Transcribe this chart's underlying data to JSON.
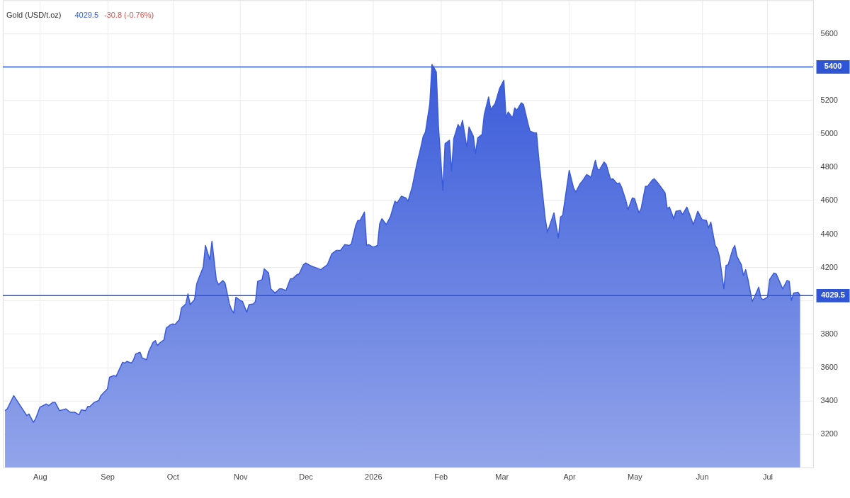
{
  "chart_data": {
    "type": "area",
    "title": "Gold (USD/t.oz)",
    "annotations": [
      "4029.5",
      "-30.8 (-0.76%)"
    ],
    "x": [
      "2025-07-16",
      "2025-07-17",
      "2025-07-20",
      "2025-07-22",
      "2025-07-23",
      "2025-07-26",
      "2025-07-27",
      "2025-07-29",
      "2025-07-30",
      "2025-08-01",
      "2025-08-04",
      "2025-08-05",
      "2025-08-07",
      "2025-08-08",
      "2025-08-10",
      "2025-08-13",
      "2025-08-15",
      "2025-08-17",
      "2025-08-19",
      "2025-08-20",
      "2025-08-22",
      "2025-08-23",
      "2025-08-24",
      "2025-08-26",
      "2025-08-28",
      "2025-08-29",
      "2025-09-01",
      "2025-09-02",
      "2025-09-04",
      "2025-09-05",
      "2025-09-08",
      "2025-09-09",
      "2025-09-10",
      "2025-09-12",
      "2025-09-13",
      "2025-09-14",
      "2025-09-16",
      "2025-09-17",
      "2025-09-19",
      "2025-09-20",
      "2025-09-22",
      "2025-09-23",
      "2025-09-24",
      "2025-09-25",
      "2025-09-27",
      "2025-09-28",
      "2025-09-30",
      "2025-10-01",
      "2025-10-02",
      "2025-10-04",
      "2025-10-05",
      "2025-10-07",
      "2025-10-08",
      "2025-10-09",
      "2025-10-11",
      "2025-10-12",
      "2025-10-13",
      "2025-10-15",
      "2025-10-16",
      "2025-10-18",
      "2025-10-19",
      "2025-10-21",
      "2025-10-22",
      "2025-10-24",
      "2025-10-25",
      "2025-10-27",
      "2025-10-28",
      "2025-10-29",
      "2025-10-30",
      "2025-11-01",
      "2025-11-02",
      "2025-11-04",
      "2025-11-05",
      "2025-11-07",
      "2025-11-08",
      "2025-11-09",
      "2025-11-11",
      "2025-11-12",
      "2025-11-14",
      "2025-11-15",
      "2025-11-17",
      "2025-11-19",
      "2025-11-20",
      "2025-11-22",
      "2025-11-24",
      "2025-11-25",
      "2025-11-27",
      "2025-11-28",
      "2025-11-30",
      "2025-12-01",
      "2025-12-03",
      "2025-12-05",
      "2025-12-08",
      "2025-12-11",
      "2025-12-13",
      "2025-12-15",
      "2025-12-17",
      "2025-12-19",
      "2025-12-21",
      "2025-12-22",
      "2025-12-24",
      "2025-12-25",
      "2025-12-26",
      "2025-12-28",
      "2025-12-29",
      "2025-12-30",
      "2026-01-01",
      "2026-01-03",
      "2026-01-04",
      "2026-01-05",
      "2026-01-07",
      "2026-01-09",
      "2026-01-11",
      "2026-01-12",
      "2026-01-14",
      "2026-01-16",
      "2026-01-17",
      "2026-01-19",
      "2026-01-21",
      "2026-01-23",
      "2026-01-24",
      "2026-01-25",
      "2026-01-27",
      "2026-01-28",
      "2026-01-30",
      "2026-01-31",
      "2026-02-02",
      "2026-02-03",
      "2026-02-05",
      "2026-02-06",
      "2026-02-07",
      "2026-02-09",
      "2026-02-10",
      "2026-02-11",
      "2026-02-13",
      "2026-02-14",
      "2026-02-16",
      "2026-02-17",
      "2026-02-18",
      "2026-02-20",
      "2026-02-21",
      "2026-02-23",
      "2026-02-24",
      "2026-02-26",
      "2026-02-28",
      "2026-03-02",
      "2026-03-03",
      "2026-03-04",
      "2026-03-06",
      "2026-03-07",
      "2026-03-08",
      "2026-03-10",
      "2026-03-11",
      "2026-03-13",
      "2026-03-14",
      "2026-03-16",
      "2026-03-17",
      "2026-03-18",
      "2026-03-21",
      "2026-03-22",
      "2026-03-25",
      "2026-03-27",
      "2026-03-28",
      "2026-03-29",
      "2026-04-01",
      "2026-04-03",
      "2026-04-04",
      "2026-04-06",
      "2026-04-07",
      "2026-04-09",
      "2026-04-11",
      "2026-04-13",
      "2026-04-14",
      "2026-04-15",
      "2026-04-17",
      "2026-04-18",
      "2026-04-20",
      "2026-04-21",
      "2026-04-23",
      "2026-04-24",
      "2026-04-25",
      "2026-04-27",
      "2026-04-28",
      "2026-04-30",
      "2026-05-01",
      "2026-05-03",
      "2026-05-04",
      "2026-05-06",
      "2026-05-07",
      "2026-05-09",
      "2026-05-10",
      "2026-05-12",
      "2026-05-15",
      "2026-05-16",
      "2026-05-17",
      "2026-05-19",
      "2026-05-20",
      "2026-05-22",
      "2026-05-23",
      "2026-05-25",
      "2026-05-28",
      "2026-05-30",
      "2026-06-01",
      "2026-06-03",
      "2026-06-04",
      "2026-06-05",
      "2026-06-07",
      "2026-06-08",
      "2026-06-09",
      "2026-06-11",
      "2026-06-12",
      "2026-06-13",
      "2026-06-15",
      "2026-06-16",
      "2026-06-17",
      "2026-06-19",
      "2026-06-20",
      "2026-06-21",
      "2026-06-22",
      "2026-06-24",
      "2026-06-25",
      "2026-06-27",
      "2026-06-28",
      "2026-06-29",
      "2026-07-01",
      "2026-07-02",
      "2026-07-04",
      "2026-07-05",
      "2026-07-07",
      "2026-07-08",
      "2026-07-10",
      "2026-07-11",
      "2026-07-12",
      "2026-07-13",
      "2026-07-15",
      "2026-07-16"
    ],
    "series": [
      {
        "color": "#3a5bd9",
        "values": [
          3340,
          3350,
          3430,
          3390,
          3370,
          3310,
          3320,
          3270,
          3290,
          3360,
          3380,
          3370,
          3390,
          3390,
          3340,
          3350,
          3330,
          3330,
          3315,
          3345,
          3340,
          3365,
          3365,
          3390,
          3400,
          3430,
          3470,
          3540,
          3550,
          3545,
          3630,
          3625,
          3635,
          3625,
          3645,
          3680,
          3690,
          3655,
          3645,
          3695,
          3750,
          3760,
          3730,
          3745,
          3765,
          3835,
          3855,
          3860,
          3855,
          3885,
          3955,
          3980,
          4040,
          3975,
          4005,
          4100,
          4135,
          4200,
          4330,
          4245,
          4355,
          4125,
          4095,
          4120,
          4105,
          3980,
          3945,
          3925,
          4020,
          4000,
          3995,
          3930,
          3975,
          3980,
          3995,
          4115,
          4125,
          4190,
          4165,
          4070,
          4045,
          4070,
          4070,
          4060,
          4130,
          4130,
          4155,
          4160,
          4215,
          4225,
          4210,
          4200,
          4185,
          4215,
          4280,
          4300,
          4300,
          4335,
          4330,
          4340,
          4450,
          4480,
          4480,
          4530,
          4330,
          4335,
          4320,
          4330,
          4460,
          4490,
          4455,
          4505,
          4595,
          4585,
          4625,
          4615,
          4595,
          4685,
          4815,
          4925,
          4985,
          5010,
          5180,
          5415,
          5370,
          5040,
          4660,
          4940,
          4960,
          4775,
          4970,
          5055,
          5030,
          5080,
          4920,
          5040,
          4985,
          4880,
          4975,
          4995,
          5115,
          5220,
          5145,
          5180,
          5270,
          5320,
          5095,
          5130,
          5095,
          5155,
          5140,
          5185,
          5175,
          5065,
          5015,
          5005,
          5005,
          4855,
          4490,
          4410,
          4525,
          4375,
          4500,
          4510,
          4780,
          4675,
          4650,
          4700,
          4715,
          4755,
          4740,
          4840,
          4785,
          4785,
          4830,
          4815,
          4725,
          4730,
          4700,
          4705,
          4680,
          4600,
          4545,
          4615,
          4610,
          4525,
          4550,
          4685,
          4685,
          4720,
          4730,
          4700,
          4645,
          4550,
          4560,
          4490,
          4535,
          4540,
          4515,
          4560,
          4455,
          4535,
          4485,
          4480,
          4435,
          4470,
          4330,
          4310,
          4260,
          4070,
          4210,
          4215,
          4305,
          4330,
          4265,
          4215,
          4150,
          4185,
          4130,
          3995,
          4020,
          4080,
          4015,
          4005,
          4020,
          4125,
          4165,
          4160,
          4100,
          4070,
          4120,
          4115,
          4000,
          4045,
          4050,
          4029.5
        ]
      }
    ],
    "xlim": [
      "2025-07-15",
      "2026-07-22"
    ],
    "xticks": [
      {
        "value": "2025-08-01",
        "label": "Aug"
      },
      {
        "value": "2025-09-01",
        "label": "Sep"
      },
      {
        "value": "2025-10-01",
        "label": "Oct"
      },
      {
        "value": "2025-11-01",
        "label": "Nov"
      },
      {
        "value": "2025-12-01",
        "label": "Dec"
      },
      {
        "value": "2026-01-01",
        "label": "2026"
      },
      {
        "value": "2026-02-01",
        "label": "Feb"
      },
      {
        "value": "2026-03-01",
        "label": "Mar"
      },
      {
        "value": "2026-04-01",
        "label": "Apr"
      },
      {
        "value": "2026-05-01",
        "label": "May"
      },
      {
        "value": "2026-06-01",
        "label": "Jun"
      },
      {
        "value": "2026-07-01",
        "label": "Jul"
      }
    ],
    "ylim": [
      3000,
      5800
    ],
    "yticks": [
      3200,
      3400,
      3600,
      3800,
      {
        "value": 4000,
        "label": null
      },
      4200,
      4400,
      4600,
      4800,
      5000,
      5200,
      {
        "value": 5400,
        "label": null
      },
      5600
    ],
    "ref_lines": [
      {
        "axis": "y",
        "value": 5400,
        "label": "5400",
        "color": "#2f55d4"
      },
      {
        "axis": "y",
        "value": 4029.5,
        "label": "4029.5",
        "color": "#2f55d4"
      }
    ],
    "grid": true
  }
}
